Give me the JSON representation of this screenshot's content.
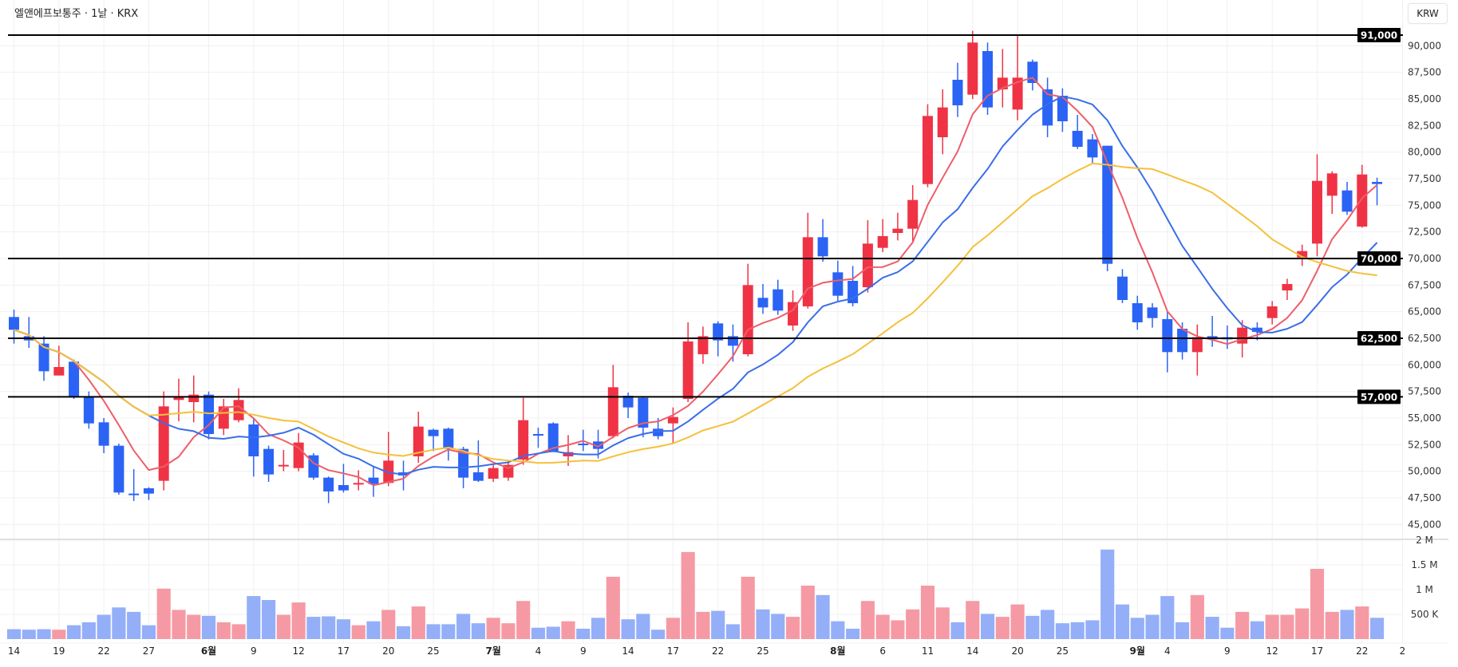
{
  "header": {
    "title": "엘앤에프보통주 · 1날 · KRX",
    "currency_button": "KRW"
  },
  "chart_data": {
    "type": "candlestick",
    "title": "엘앤에프보통주 · 1날 · KRX",
    "colors": {
      "up": "#ef3345",
      "down": "#2b63f5",
      "vol_up": "#f59aa4",
      "vol_down": "#94aff8",
      "ma5": "#ee5e69",
      "ma10": "#3a6ee8",
      "ma20": "#f5c03a",
      "level": "#000000"
    },
    "ylim": [
      43500,
      92000
    ],
    "y_ticks": [
      45000,
      47500,
      50000,
      52500,
      55000,
      57500,
      60000,
      62500,
      65000,
      67500,
      70000,
      72500,
      75000,
      77500,
      80000,
      82500,
      85000,
      87500,
      90000
    ],
    "y_tick_labels": [
      "45,000",
      "47,500",
      "50,000",
      "52,500",
      "55,000",
      "57,500",
      "60,000",
      "62,500",
      "65,000",
      "67,500",
      "70,000",
      "72,500",
      "75,000",
      "77,500",
      "80,000",
      "82,500",
      "85,000",
      "87,500",
      "90,000"
    ],
    "levels": [
      {
        "value": 91000,
        "label": "91,000"
      },
      {
        "value": 70000,
        "label": "70,000"
      },
      {
        "value": 62500,
        "label": "62,500"
      },
      {
        "value": 57000,
        "label": "57,000"
      }
    ],
    "volume_ticks": [
      {
        "value": 500000,
        "label": "500 K"
      },
      {
        "value": 1000000,
        "label": "1 M"
      },
      {
        "value": 1500000,
        "label": "1.5 M"
      },
      {
        "value": 2000000,
        "label": "2 M"
      }
    ],
    "moving_averages": [
      {
        "name": "MA5",
        "period": 5
      },
      {
        "name": "MA10",
        "period": 10
      },
      {
        "name": "MA20",
        "period": 20
      }
    ],
    "x_labels": [
      {
        "index": 0,
        "label": "14",
        "bold": false
      },
      {
        "index": 3,
        "label": "19",
        "bold": false
      },
      {
        "index": 6,
        "label": "22",
        "bold": false
      },
      {
        "index": 9,
        "label": "27",
        "bold": false
      },
      {
        "index": 13,
        "label": "6월",
        "bold": true
      },
      {
        "index": 16,
        "label": "9",
        "bold": false
      },
      {
        "index": 19,
        "label": "12",
        "bold": false
      },
      {
        "index": 22,
        "label": "17",
        "bold": false
      },
      {
        "index": 25,
        "label": "20",
        "bold": false
      },
      {
        "index": 28,
        "label": "25",
        "bold": false
      },
      {
        "index": 32,
        "label": "7월",
        "bold": true
      },
      {
        "index": 35,
        "label": "4",
        "bold": false
      },
      {
        "index": 38,
        "label": "9",
        "bold": false
      },
      {
        "index": 41,
        "label": "14",
        "bold": false
      },
      {
        "index": 44,
        "label": "17",
        "bold": false
      },
      {
        "index": 47,
        "label": "22",
        "bold": false
      },
      {
        "index": 50,
        "label": "25",
        "bold": false
      },
      {
        "index": 55,
        "label": "8월",
        "bold": true
      },
      {
        "index": 58,
        "label": "6",
        "bold": false
      },
      {
        "index": 61,
        "label": "11",
        "bold": false
      },
      {
        "index": 64,
        "label": "14",
        "bold": false
      },
      {
        "index": 67,
        "label": "20",
        "bold": false
      },
      {
        "index": 70,
        "label": "25",
        "bold": false
      },
      {
        "index": 75,
        "label": "9월",
        "bold": true
      },
      {
        "index": 77,
        "label": "4",
        "bold": false
      },
      {
        "index": 81,
        "label": "9",
        "bold": false
      },
      {
        "index": 84,
        "label": "12",
        "bold": false
      },
      {
        "index": 87,
        "label": "17",
        "bold": false
      },
      {
        "index": 90,
        "label": "22",
        "bold": false
      },
      {
        "index": 92.7,
        "label": "2",
        "bold": false
      }
    ],
    "fields": [
      "open",
      "high",
      "low",
      "close",
      "volume"
    ],
    "candles": [
      [
        64500,
        65200,
        62000,
        63300,
        200000
      ],
      [
        62700,
        64500,
        61600,
        62300,
        190000
      ],
      [
        62000,
        62700,
        58500,
        59400,
        200000
      ],
      [
        59000,
        61800,
        59000,
        59800,
        190000
      ],
      [
        60300,
        60500,
        56800,
        57000,
        280000
      ],
      [
        57000,
        57500,
        54000,
        54500,
        340000
      ],
      [
        54600,
        55000,
        51700,
        52400,
        490000
      ],
      [
        52400,
        52600,
        47800,
        48000,
        640000
      ],
      [
        47900,
        50200,
        47200,
        47800,
        550000
      ],
      [
        48400,
        48500,
        47300,
        47900,
        280000
      ],
      [
        49100,
        57500,
        48200,
        56100,
        1020000
      ],
      [
        56700,
        58700,
        54700,
        57000,
        590000
      ],
      [
        56500,
        59000,
        54600,
        57200,
        490000
      ],
      [
        57200,
        57500,
        53000,
        53500,
        470000
      ],
      [
        54000,
        56800,
        53400,
        56100,
        340000
      ],
      [
        54800,
        57800,
        54600,
        56700,
        300000
      ],
      [
        54400,
        55000,
        49500,
        51400,
        870000
      ],
      [
        52100,
        52400,
        49000,
        49700,
        790000
      ],
      [
        50500,
        52000,
        50000,
        50600,
        490000
      ],
      [
        50300,
        53600,
        50000,
        52700,
        740000
      ],
      [
        51500,
        51700,
        49200,
        49400,
        450000
      ],
      [
        49400,
        49500,
        47000,
        48100,
        460000
      ],
      [
        48700,
        50700,
        48000,
        48200,
        400000
      ],
      [
        48800,
        50100,
        48200,
        48900,
        280000
      ],
      [
        49400,
        50400,
        47600,
        48800,
        360000
      ],
      [
        48900,
        53700,
        48600,
        51000,
        590000
      ],
      [
        49900,
        51000,
        48200,
        49600,
        260000
      ],
      [
        51400,
        55600,
        50800,
        54200,
        660000
      ],
      [
        53900,
        54000,
        51900,
        53300,
        300000
      ],
      [
        54000,
        54100,
        51000,
        52100,
        300000
      ],
      [
        52100,
        52300,
        48400,
        49400,
        510000
      ],
      [
        49900,
        52900,
        49000,
        49100,
        320000
      ],
      [
        49300,
        50600,
        49000,
        50300,
        430000
      ],
      [
        49400,
        51000,
        49100,
        50600,
        320000
      ],
      [
        51100,
        56900,
        50600,
        54800,
        770000
      ],
      [
        53500,
        54100,
        52200,
        53400,
        230000
      ],
      [
        54500,
        54600,
        51800,
        51800,
        250000
      ],
      [
        51400,
        53400,
        50500,
        51800,
        360000
      ],
      [
        52600,
        53900,
        51900,
        52500,
        210000
      ],
      [
        52800,
        53900,
        51200,
        52100,
        430000
      ],
      [
        53300,
        60000,
        53100,
        57900,
        1260000
      ],
      [
        57100,
        57400,
        55000,
        56000,
        400000
      ],
      [
        56900,
        57000,
        53200,
        54100,
        510000
      ],
      [
        54000,
        55000,
        53000,
        53300,
        190000
      ],
      [
        54500,
        56000,
        52600,
        55100,
        430000
      ],
      [
        56800,
        64000,
        56500,
        62200,
        1760000
      ],
      [
        61000,
        63600,
        60100,
        62700,
        550000
      ],
      [
        63900,
        64100,
        60800,
        62300,
        570000
      ],
      [
        62700,
        63800,
        60300,
        61800,
        300000
      ],
      [
        61000,
        69500,
        60800,
        67500,
        1260000
      ],
      [
        66300,
        67600,
        64800,
        65400,
        600000
      ],
      [
        67100,
        68000,
        64700,
        65100,
        510000
      ],
      [
        63700,
        67000,
        63200,
        65900,
        450000
      ],
      [
        65500,
        74300,
        65300,
        72000,
        1080000
      ],
      [
        72000,
        73700,
        69700,
        70200,
        890000
      ],
      [
        68700,
        69800,
        65900,
        66500,
        360000
      ],
      [
        67900,
        69300,
        65500,
        65800,
        210000
      ],
      [
        67300,
        73600,
        66800,
        71400,
        770000
      ],
      [
        71000,
        73700,
        70600,
        72100,
        490000
      ],
      [
        72400,
        74300,
        71700,
        72800,
        380000
      ],
      [
        72800,
        76900,
        71600,
        75500,
        600000
      ],
      [
        77000,
        84500,
        76700,
        83400,
        1080000
      ],
      [
        81400,
        85900,
        79800,
        84200,
        640000
      ],
      [
        86800,
        88400,
        83300,
        84400,
        340000
      ],
      [
        85400,
        91400,
        85000,
        90300,
        770000
      ],
      [
        89500,
        90300,
        83500,
        84200,
        510000
      ],
      [
        85900,
        89700,
        84200,
        87000,
        450000
      ],
      [
        84000,
        91000,
        83000,
        87000,
        700000
      ],
      [
        88500,
        88700,
        85800,
        86500,
        470000
      ],
      [
        85900,
        87000,
        81400,
        82500,
        590000
      ],
      [
        85300,
        86000,
        81900,
        82900,
        320000
      ],
      [
        82000,
        83500,
        80300,
        80500,
        340000
      ],
      [
        81200,
        81700,
        79000,
        79500,
        380000
      ],
      [
        80600,
        80600,
        68800,
        69500,
        1810000
      ],
      [
        68300,
        69000,
        65800,
        66100,
        700000
      ],
      [
        65800,
        66500,
        63300,
        64000,
        430000
      ],
      [
        65400,
        65800,
        63500,
        64400,
        490000
      ],
      [
        64300,
        65000,
        59300,
        61200,
        870000
      ],
      [
        63400,
        64000,
        60500,
        61200,
        340000
      ],
      [
        61200,
        63800,
        59000,
        62600,
        890000
      ],
      [
        62700,
        64600,
        61700,
        62400,
        450000
      ],
      [
        62600,
        63700,
        61500,
        62400,
        230000
      ],
      [
        62000,
        64200,
        60700,
        63500,
        550000
      ],
      [
        63500,
        64000,
        62300,
        63100,
        360000
      ],
      [
        64400,
        66000,
        63800,
        65500,
        490000
      ],
      [
        67000,
        68100,
        66100,
        67600,
        490000
      ],
      [
        70100,
        71300,
        69300,
        70700,
        620000
      ],
      [
        71400,
        79800,
        70200,
        77300,
        1420000
      ],
      [
        75900,
        78200,
        74200,
        78000,
        550000
      ],
      [
        76400,
        77200,
        74100,
        74400,
        590000
      ],
      [
        73000,
        78800,
        72900,
        77900,
        660000
      ],
      [
        77200,
        77600,
        75000,
        77000,
        430000
      ]
    ]
  }
}
